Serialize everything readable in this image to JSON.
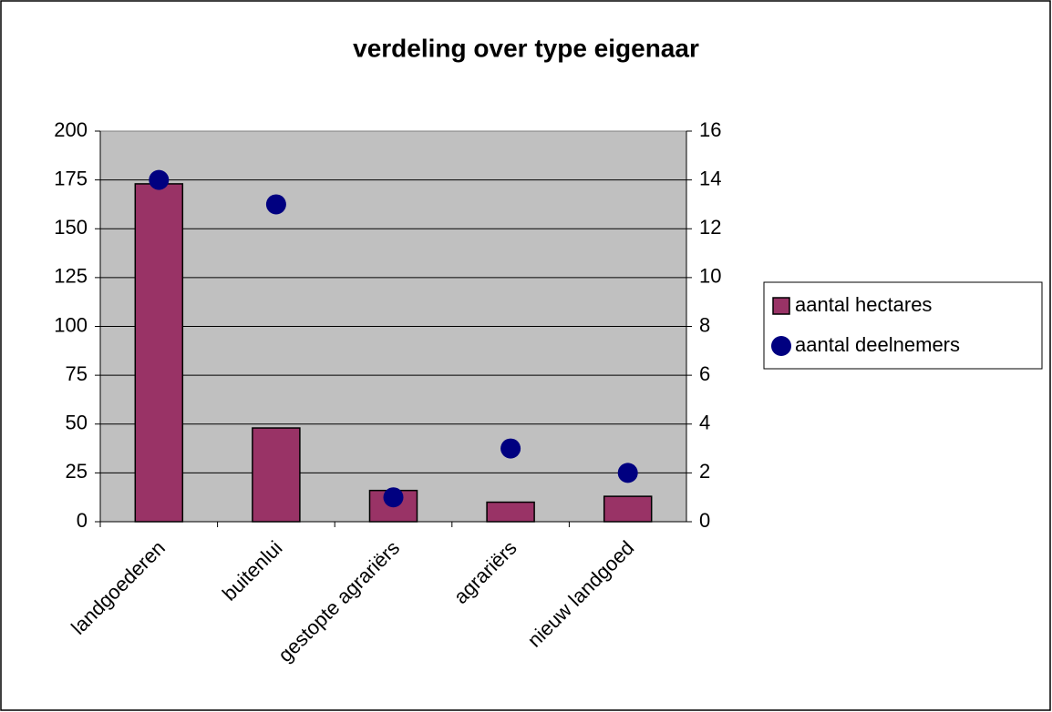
{
  "chart_data": {
    "type": "combo",
    "title": "verdeling over type eigenaar",
    "categories": [
      "landgoederen",
      "buitenlui",
      "gestopte agrariërs",
      "agrariërs",
      "nieuw landgoed"
    ],
    "series": [
      {
        "name": "aantal hectares",
        "type": "bar",
        "color": "#993366",
        "values": [
          173,
          48,
          16,
          10,
          13
        ]
      },
      {
        "name": "aantal deelnemers",
        "type": "scatter",
        "axis": "y2",
        "color": "#000080",
        "values": [
          14,
          13,
          1,
          3,
          2
        ]
      }
    ],
    "ylim": [
      0,
      200
    ],
    "yticks": [
      0,
      25,
      50,
      75,
      100,
      125,
      150,
      175,
      200
    ],
    "y2lim": [
      0,
      16
    ],
    "y2ticks": [
      0,
      2,
      4,
      6,
      8,
      10,
      12,
      14,
      16
    ],
    "grid": true,
    "legend": "right"
  }
}
